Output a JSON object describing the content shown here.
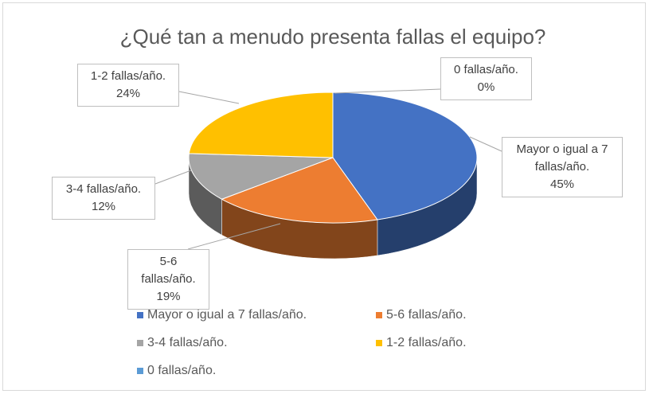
{
  "chart_data": {
    "type": "pie3d",
    "title": "¿Qué tan a menudo presenta fallas el equipo?",
    "categories": [
      "Mayor o igual a 7 fallas/año.",
      "5-6 fallas/año.",
      "3-4 fallas/año.",
      "1-2 fallas/año.",
      "0 fallas/año."
    ],
    "values": [
      45,
      19,
      12,
      24,
      0
    ],
    "value_labels": [
      "45%",
      "19%",
      "12%",
      "24%",
      "0%"
    ],
    "colors": [
      "#4472c4",
      "#ed7d31",
      "#a5a5a5",
      "#ffc000",
      "#5b9bd5"
    ],
    "legend": "bottom"
  }
}
